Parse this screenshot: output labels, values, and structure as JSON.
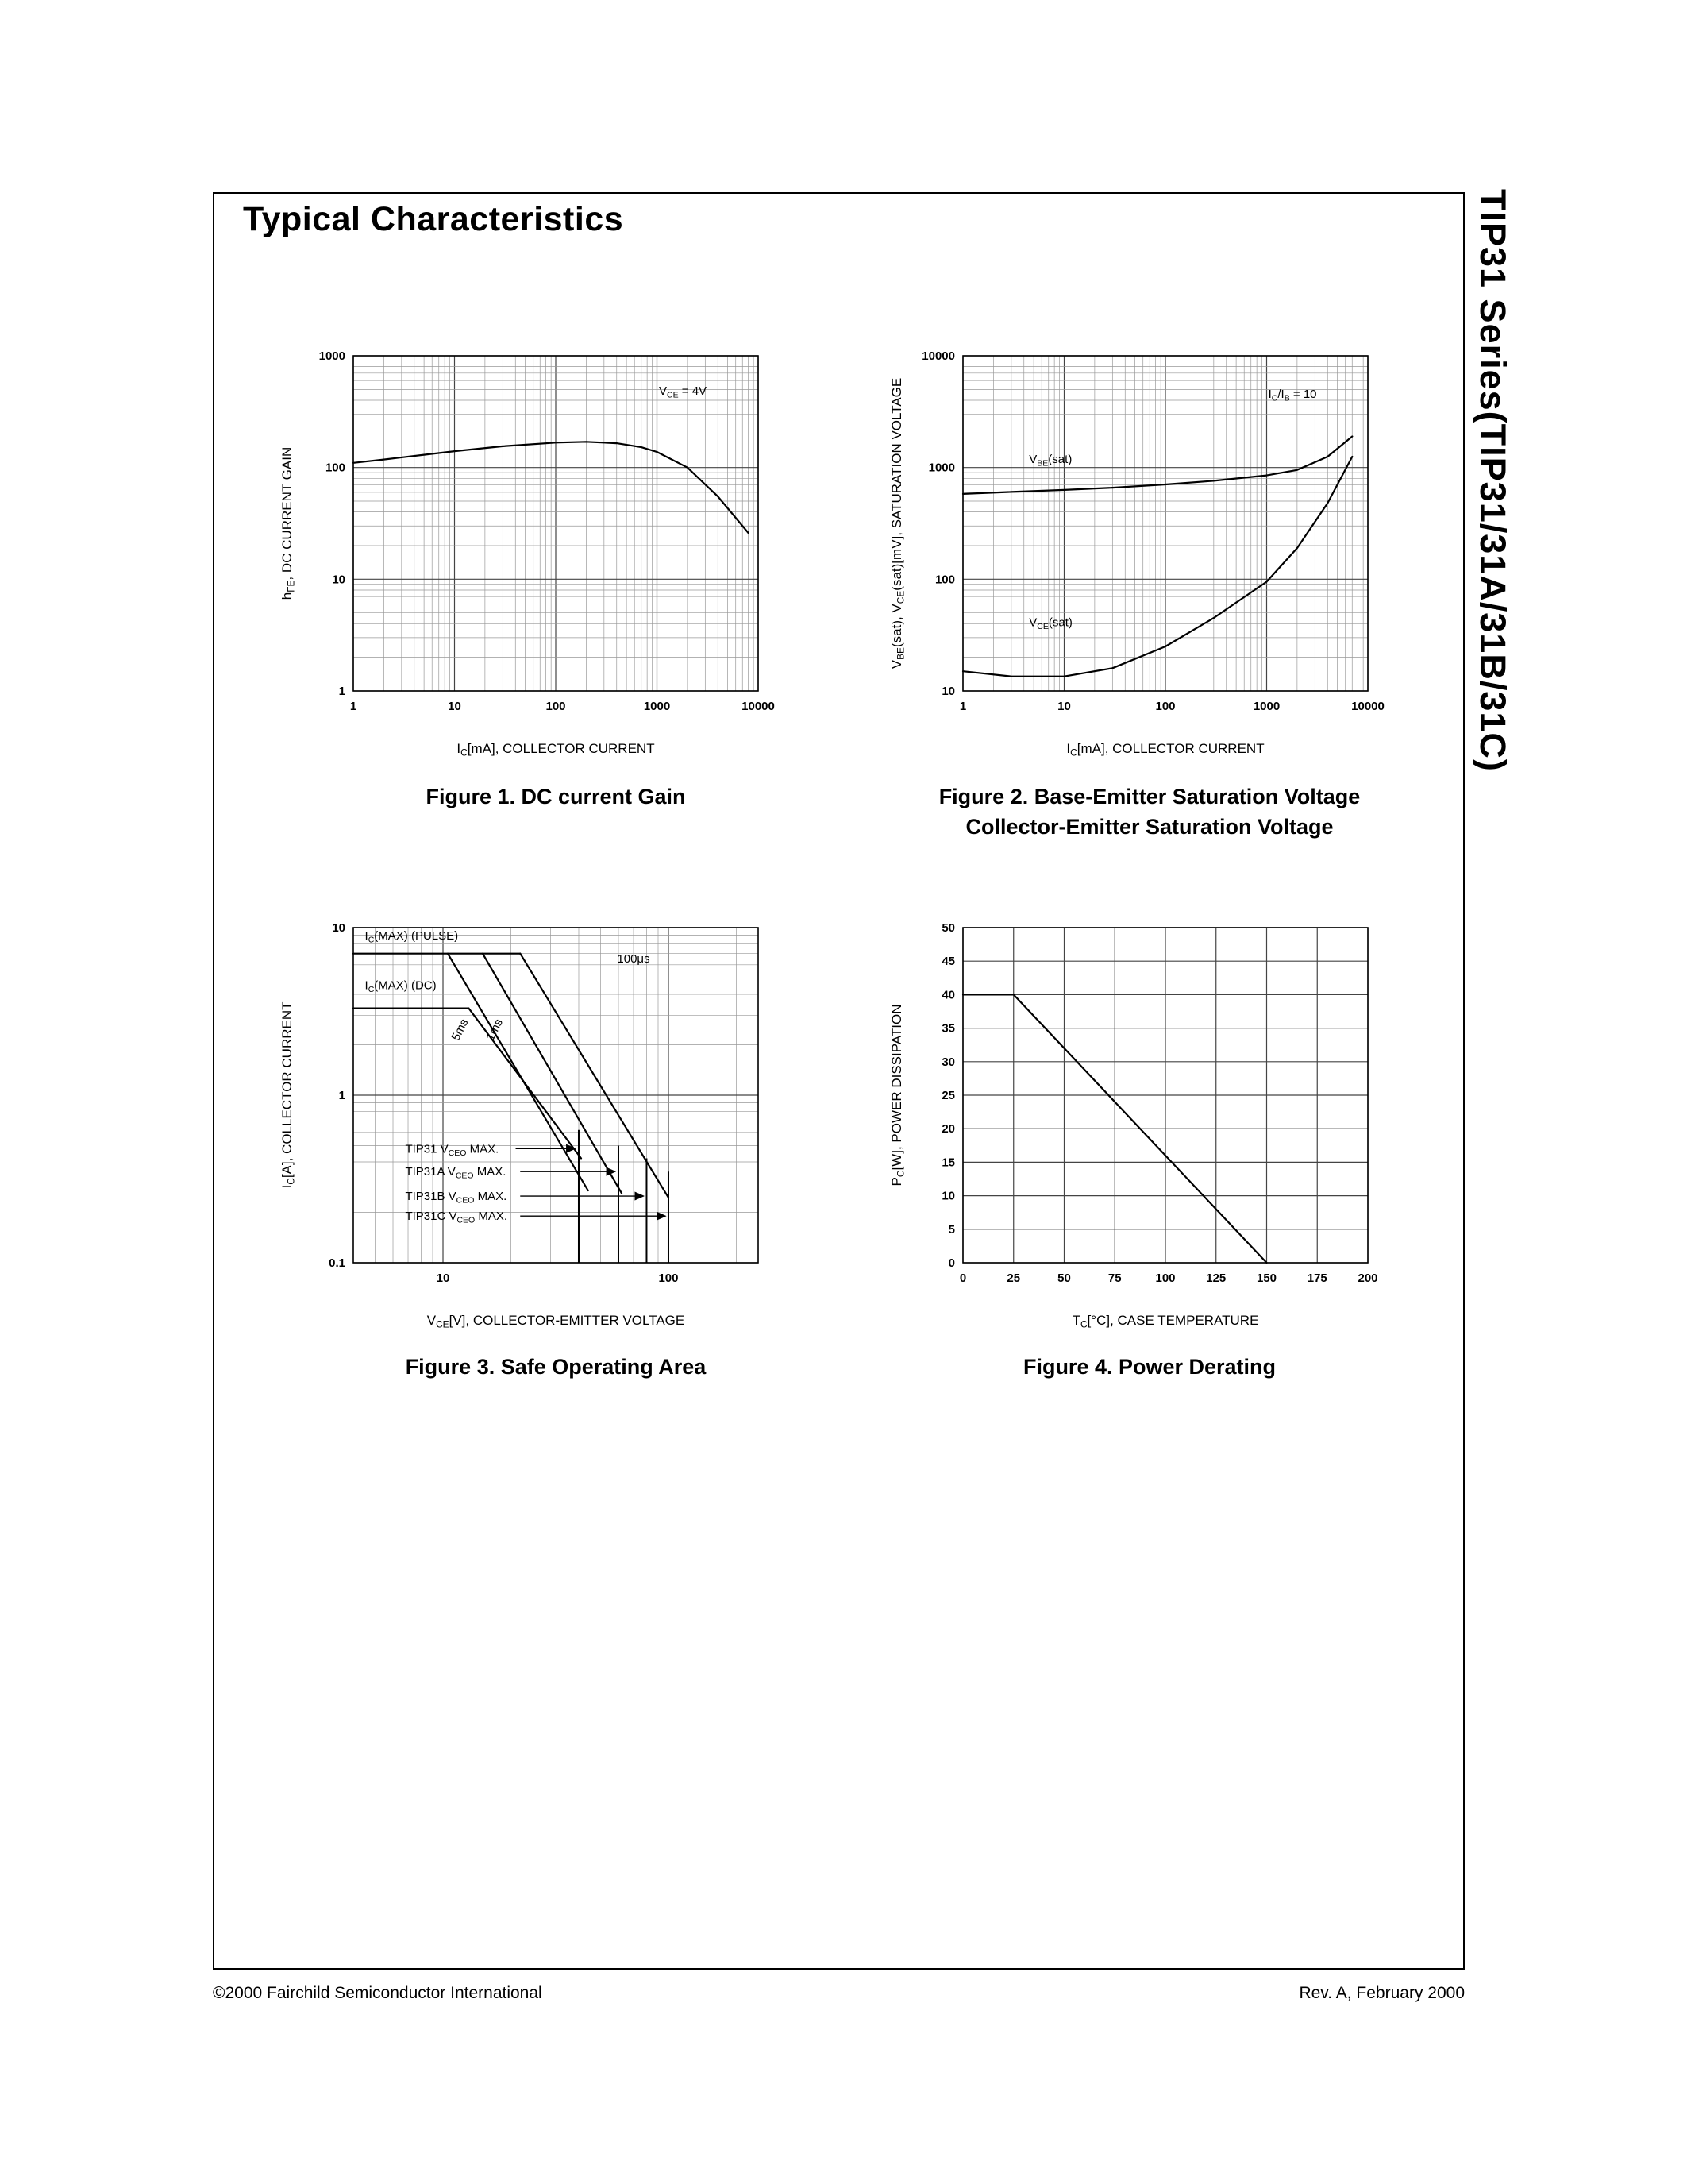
{
  "page": {
    "title": "Typical Characteristics",
    "sidebar_title": "TIP31 Series(TIP31/31A/31B/31C)",
    "footer_left": "©2000 Fairchild Semiconductor International",
    "footer_right": "Rev. A, February 2000"
  },
  "figures": [
    {
      "caption": [
        "Figure 1. DC current Gain"
      ]
    },
    {
      "caption": [
        "Figure 2. Base-Emitter Saturation Voltage",
        "Collector-Emitter Saturation Voltage"
      ]
    },
    {
      "caption": [
        "Figure 3. Safe Operating Area"
      ]
    },
    {
      "caption": [
        "Figure 4. Power Derating"
      ]
    }
  ],
  "chart_data": [
    {
      "type": "line",
      "name": "dc-current-gain",
      "xscale": "log",
      "yscale": "log",
      "xlim": [
        1,
        10000
      ],
      "ylim": [
        1,
        1000
      ],
      "xticks": [
        1,
        10,
        100,
        1000,
        10000
      ],
      "yticks": [
        1,
        10,
        100,
        1000
      ],
      "xlabel": "I_{C}[mA], COLLECTOR CURRENT",
      "ylabel": "h_{FE}, DC CURRENT GAIN",
      "annotations": [
        {
          "text": "V_{CE} = 4V",
          "x": 1800,
          "y": 450,
          "anchor": "middle"
        }
      ],
      "series": [
        {
          "name": "hFE",
          "x": [
            1,
            2,
            5,
            10,
            30,
            100,
            200,
            400,
            700,
            1000,
            2000,
            4000,
            8000
          ],
          "y": [
            110,
            118,
            130,
            140,
            155,
            167,
            170,
            165,
            152,
            138,
            100,
            55,
            26
          ]
        }
      ]
    },
    {
      "type": "line",
      "name": "saturation-voltage",
      "xscale": "log",
      "yscale": "log",
      "xlim": [
        1,
        10000
      ],
      "ylim": [
        10,
        10000
      ],
      "xticks": [
        1,
        10,
        100,
        1000,
        10000
      ],
      "yticks": [
        10,
        100,
        1000,
        10000
      ],
      "xlabel": "I_{C}[mA], COLLECTOR CURRENT",
      "ylabel": "V_{BE}(sat), V_{CE}(sat)[mV], SATURATION VOLTAGE",
      "annotations": [
        {
          "text": "I_{C}/I_{B} = 10",
          "x": 1800,
          "y": 4200,
          "anchor": "middle"
        },
        {
          "text": "V_{BE}(sat)",
          "x": 4.5,
          "y": 1100,
          "anchor": "start"
        },
        {
          "text": "V_{CE}(sat)",
          "x": 4.5,
          "y": 38,
          "anchor": "start"
        }
      ],
      "series": [
        {
          "name": "VBE(sat)",
          "x": [
            1,
            3,
            10,
            30,
            100,
            300,
            1000,
            2000,
            4000,
            7000
          ],
          "y": [
            580,
            605,
            630,
            660,
            705,
            760,
            850,
            950,
            1250,
            1900
          ]
        },
        {
          "name": "VCE(sat)",
          "x": [
            1,
            3,
            10,
            30,
            100,
            300,
            1000,
            2000,
            4000,
            7000
          ],
          "y": [
            15,
            13.5,
            13.5,
            16,
            25,
            45,
            95,
            190,
            480,
            1250
          ]
        }
      ]
    },
    {
      "type": "line",
      "name": "safe-operating-area",
      "xscale": "log",
      "yscale": "log",
      "xlim": [
        4,
        250
      ],
      "ylim": [
        0.1,
        10
      ],
      "xticks": [
        10,
        100
      ],
      "yticks": [
        0.1,
        1,
        10
      ],
      "xlabel": "V_{CE}[V], COLLECTOR-EMITTER VOLTAGE",
      "ylabel": "I_{C}[A], COLLECTOR CURRENT",
      "annotations": [
        {
          "text": "I_{C}(MAX) (PULSE)",
          "x": 4.5,
          "y": 8.5,
          "anchor": "start"
        },
        {
          "text": "I_{C}(MAX) (DC)",
          "x": 4.5,
          "y": 4.3,
          "anchor": "start"
        },
        {
          "text": "5ms",
          "x": 12.3,
          "y": 2.4,
          "anchor": "middle",
          "rotate": -63
        },
        {
          "text": "1ms",
          "x": 17.5,
          "y": 2.4,
          "anchor": "middle",
          "rotate": -63
        },
        {
          "text": "100μs",
          "x": 70,
          "y": 6.2,
          "anchor": "middle"
        },
        {
          "text": "TIP31 V_{CEO} MAX.",
          "x": 6.8,
          "y": 0.48,
          "anchor": "start",
          "dy": 5
        },
        {
          "text": "TIP31A V_{CEO} MAX.",
          "x": 6.8,
          "y": 0.35,
          "anchor": "start",
          "dy": 5
        },
        {
          "text": "TIP31B V_{CEO} MAX.",
          "x": 6.8,
          "y": 0.25,
          "anchor": "start",
          "dy": 5
        },
        {
          "text": "TIP31C V_{CEO} MAX.",
          "x": 6.8,
          "y": 0.19,
          "anchor": "start",
          "dy": 5
        }
      ],
      "arrows": [
        {
          "x1": 21,
          "y1": 0.48,
          "x2": 38.5,
          "y2": 0.48
        },
        {
          "x1": 22,
          "y1": 0.35,
          "x2": 58,
          "y2": 0.35
        },
        {
          "x1": 22,
          "y1": 0.25,
          "x2": 77.5,
          "y2": 0.25
        },
        {
          "x1": 22,
          "y1": 0.19,
          "x2": 97,
          "y2": 0.19
        }
      ],
      "series": [
        {
          "name": "IC(MAX)(PULSE)",
          "x": [
            4,
            22
          ],
          "y": [
            7,
            7
          ]
        },
        {
          "name": "100μs limit",
          "x": [
            22,
            100
          ],
          "y": [
            7,
            0.245
          ]
        },
        {
          "name": "1ms limit",
          "x": [
            15,
            62
          ],
          "y": [
            7,
            0.26
          ]
        },
        {
          "name": "5ms limit",
          "x": [
            10.5,
            44
          ],
          "y": [
            7,
            0.27
          ]
        },
        {
          "name": "IC(MAX)(DC)",
          "x": [
            4,
            13
          ],
          "y": [
            3.3,
            3.3
          ]
        },
        {
          "name": "DC power limit",
          "x": [
            13,
            41
          ],
          "y": [
            3.3,
            0.42
          ]
        }
      ],
      "verticals": [
        {
          "x": 40,
          "y1": 0.62,
          "y2": 0.1
        },
        {
          "x": 60,
          "y1": 0.5,
          "y2": 0.1
        },
        {
          "x": 80,
          "y1": 0.42,
          "y2": 0.1
        },
        {
          "x": 100,
          "y1": 0.35,
          "y2": 0.1
        }
      ]
    },
    {
      "type": "line",
      "name": "power-derating",
      "xscale": "linear",
      "yscale": "linear",
      "xlim": [
        0,
        200
      ],
      "ylim": [
        0,
        50
      ],
      "xticks": [
        0,
        25,
        50,
        75,
        100,
        125,
        150,
        175,
        200
      ],
      "yticks": [
        0,
        5,
        10,
        15,
        20,
        25,
        30,
        35,
        40,
        45,
        50
      ],
      "xlabel": "T_{C}[°C], CASE TEMPERATURE",
      "ylabel": "P_{C}[W], POWER DISSIPATION",
      "annotations": [],
      "series": [
        {
          "name": "maximum power",
          "x": [
            0,
            25,
            150
          ],
          "y": [
            40,
            40,
            0
          ]
        }
      ]
    }
  ]
}
